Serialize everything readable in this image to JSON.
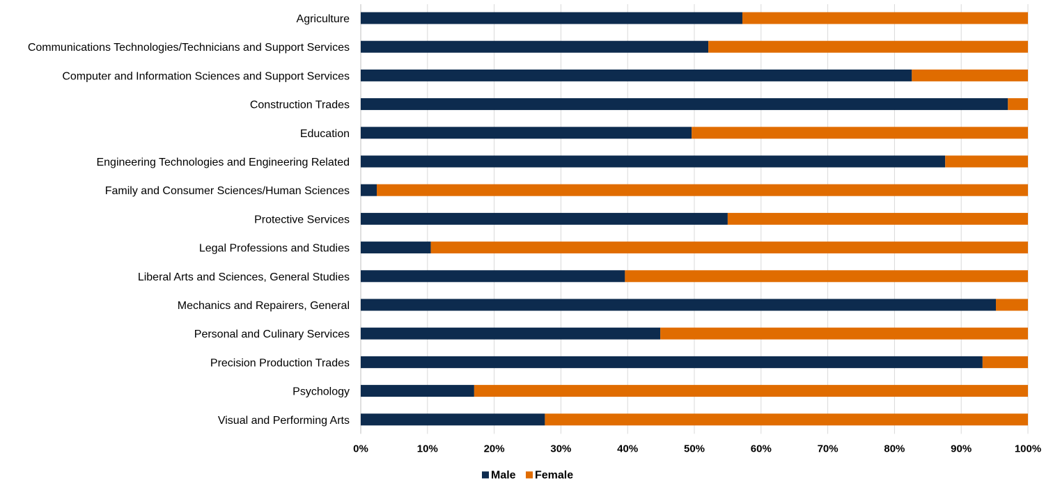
{
  "chart_data": {
    "type": "bar",
    "orientation": "horizontal",
    "stacking": "percent",
    "categories": [
      "Agriculture",
      "Communications Technologies/Technicians and Support Services",
      "Computer and Information Sciences and Support Services",
      "Construction Trades",
      "Education",
      "Engineering Technologies and Engineering Related",
      "Family and Consumer Sciences/Human Sciences",
      "Protective Services",
      "Legal Professions and Studies",
      "Liberal Arts and Sciences, General Studies",
      "Mechanics and Repairers, General",
      "Personal and Culinary Services",
      "Precision Production Trades",
      "Psychology",
      "Visual and Performing Arts"
    ],
    "series": [
      {
        "name": "Male",
        "color": "#0d2b4e",
        "values": [
          57.2,
          52.1,
          82.6,
          97.0,
          49.6,
          87.6,
          2.4,
          55.0,
          10.5,
          39.6,
          95.2,
          44.9,
          93.2,
          17.0,
          27.6
        ]
      },
      {
        "name": "Female",
        "color": "#e06c00",
        "values": [
          42.8,
          47.9,
          17.4,
          3.0,
          50.4,
          12.4,
          97.6,
          45.0,
          89.5,
          60.4,
          4.8,
          55.1,
          6.8,
          83.0,
          72.4
        ]
      }
    ],
    "x_ticks": [
      "0%",
      "10%",
      "20%",
      "30%",
      "40%",
      "50%",
      "60%",
      "70%",
      "80%",
      "90%",
      "100%"
    ],
    "xlim": [
      0,
      100
    ],
    "grid": true,
    "legend_position": "bottom",
    "title": "",
    "xlabel": "",
    "ylabel": ""
  }
}
